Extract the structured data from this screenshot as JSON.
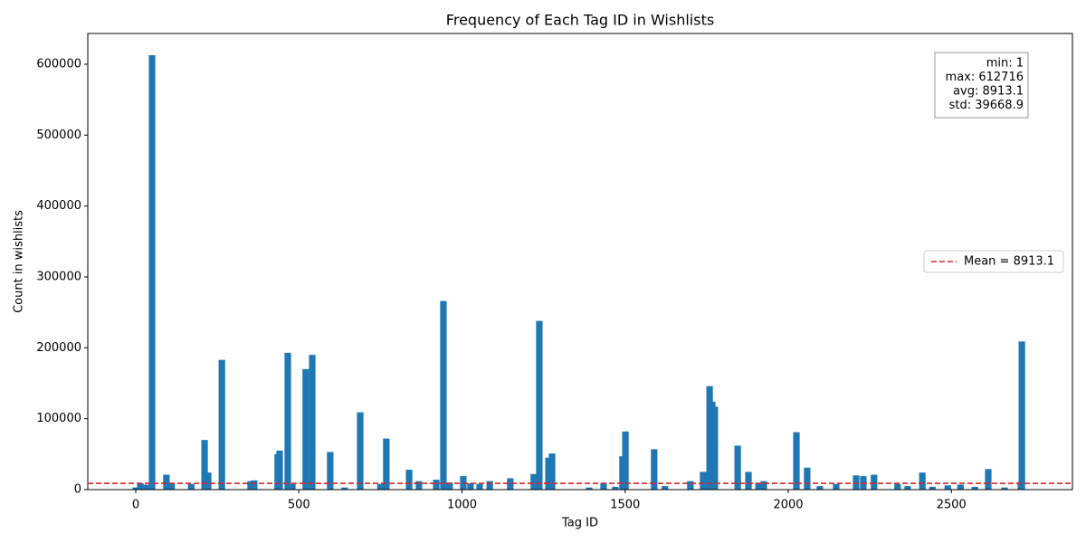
{
  "chart_data": {
    "type": "bar",
    "title": "Frequency of Each Tag ID in Wishlists",
    "x_label": "Tag ID",
    "y_label": "Count in wishlists",
    "color": "#1f77b4",
    "x": [
      0,
      14,
      30,
      50,
      94,
      110,
      170,
      211,
      222,
      264,
      352,
      363,
      435,
      441,
      466,
      480,
      521,
      541,
      596,
      640,
      688,
      750,
      768,
      838,
      868,
      921,
      943,
      962,
      1004,
      1026,
      1054,
      1085,
      1148,
      1220,
      1237,
      1265,
      1276,
      1390,
      1434,
      1470,
      1492,
      1501,
      1589,
      1622,
      1700,
      1739,
      1759,
      1767,
      1775,
      1845,
      1878,
      1909,
      1925,
      2025,
      2058,
      2097,
      2147,
      2208,
      2230,
      2263,
      2335,
      2366,
      2411,
      2442,
      2489,
      2528,
      2572,
      2613,
      2663,
      2713,
      2716
    ],
    "values": [
      3000,
      9000,
      7000,
      612716,
      21000,
      9000,
      8000,
      70000,
      24000,
      183000,
      12000,
      13000,
      50000,
      55000,
      193000,
      8000,
      170000,
      190000,
      53000,
      3000,
      109000,
      8000,
      72000,
      28000,
      12000,
      14000,
      266000,
      10000,
      19000,
      9000,
      8000,
      12000,
      16000,
      22000,
      238000,
      45000,
      51000,
      3000,
      9000,
      4000,
      47000,
      82000,
      57000,
      5000,
      12000,
      25000,
      146000,
      124000,
      117000,
      62000,
      25000,
      9000,
      12000,
      81000,
      31000,
      5000,
      8000,
      20000,
      19000,
      21000,
      8000,
      5000,
      24000,
      4000,
      6000,
      7000,
      4000,
      29000,
      3000,
      11000,
      209000
    ],
    "xlim": [
      -147,
      2871
    ],
    "xticks": [
      0,
      500,
      1000,
      1500,
      2000,
      2500
    ],
    "ylim": [
      0,
      643352
    ],
    "yticks": [
      0,
      100000,
      200000,
      300000,
      400000,
      500000,
      600000
    ],
    "mean_line": {
      "value": 8913.1,
      "label": "Mean = 8913.1",
      "color": "#d62728"
    },
    "legend": "center right",
    "stats_box": [
      "min: 1",
      "max: 612716",
      "avg: 8913.1",
      "std: 39668.9"
    ]
  }
}
